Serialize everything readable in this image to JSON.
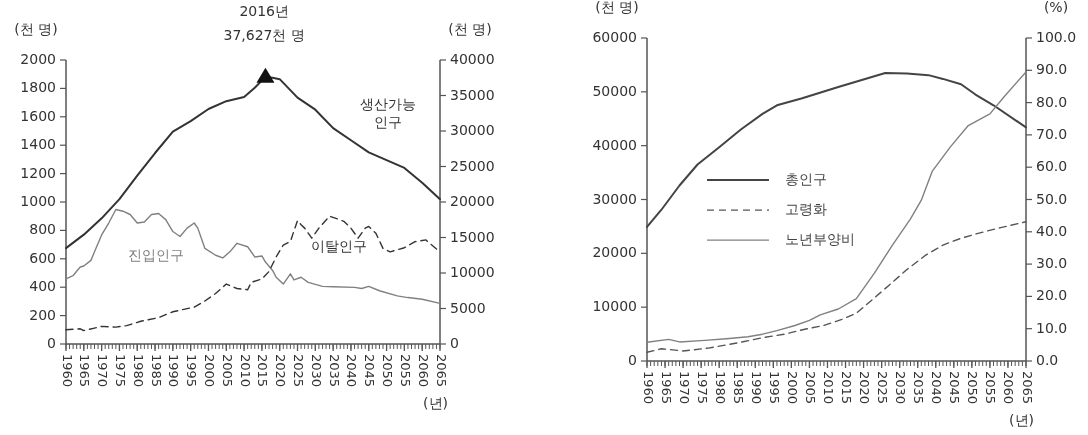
{
  "chart_data": [
    {
      "type": "line",
      "xlabel": "(년)",
      "ylabel": "(천 명)",
      "y2label": "(천 명)",
      "xlim": [
        1960,
        2065
      ],
      "xticks": [
        1960,
        1965,
        1970,
        1975,
        1980,
        1985,
        1990,
        1995,
        2000,
        2005,
        2010,
        2015,
        2020,
        2025,
        2030,
        2035,
        2040,
        2045,
        2050,
        2055,
        2060,
        2065
      ],
      "ylim": [
        0,
        2000
      ],
      "yticks": [
        0,
        200,
        400,
        600,
        800,
        1000,
        1200,
        1400,
        1600,
        1800,
        2000
      ],
      "y2lim": [
        0,
        40000
      ],
      "y2ticks": [
        0,
        5000,
        10000,
        15000,
        20000,
        25000,
        30000,
        35000,
        40000
      ],
      "grid": false,
      "legend": false,
      "annotations": [
        "2016년\n37,627천 명"
      ],
      "series": [
        {
          "name": "생산가능\n인구",
          "color": "#333333",
          "axis": "y2",
          "line_style": "solid",
          "x": [
            1960,
            1965,
            1970,
            1975,
            1980,
            1985,
            1990,
            1995,
            2000,
            2005,
            2010,
            2013,
            2016,
            2018,
            2020,
            2025,
            2030,
            2035,
            2040,
            2045,
            2050,
            2055,
            2060,
            2065
          ],
          "values": [
            13500,
            15400,
            17700,
            20400,
            23700,
            26900,
            29900,
            31400,
            33100,
            34200,
            34800,
            36100,
            37627,
            37500,
            37300,
            34700,
            33000,
            30400,
            28700,
            27000,
            25900,
            24800,
            22700,
            20400
          ]
        },
        {
          "type": "scatter",
          "marker": "triangle",
          "color": "#111111",
          "axis": "y2",
          "x": [
            2016
          ],
          "values": [
            37627
          ]
        },
        {
          "name": "진입인구",
          "color": "#808080",
          "axis": "y",
          "line_style": "solid",
          "x": [
            1960,
            1962,
            1964,
            1965,
            1967,
            1968,
            1970,
            1972,
            1974,
            1976,
            1978,
            1980,
            1982,
            1984,
            1986,
            1988,
            1990,
            1992,
            1994,
            1996,
            1997,
            1999,
            2002,
            2004,
            2006,
            2008,
            2011,
            2013,
            2015,
            2016,
            2018,
            2019,
            2021,
            2023,
            2024,
            2026,
            2028,
            2032,
            2035,
            2041,
            2043,
            2045,
            2048,
            2053,
            2056,
            2060,
            2065
          ],
          "values": [
            458,
            482,
            542,
            549,
            589,
            649,
            768,
            852,
            947,
            935,
            912,
            852,
            859,
            912,
            919,
            876,
            792,
            757,
            816,
            852,
            816,
            673,
            625,
            606,
            649,
            709,
            685,
            613,
            620,
            577,
            518,
            470,
            422,
            494,
            451,
            470,
            434,
            406,
            403,
            399,
            391,
            406,
            375,
            339,
            327,
            315,
            286
          ]
        },
        {
          "name": "이탈인구",
          "color": "#333333",
          "axis": "y",
          "line_style": "dashed",
          "x": [
            1960,
            1964,
            1965,
            1968,
            1970,
            1974,
            1977,
            1981,
            1986,
            1990,
            1996,
            1999,
            2002,
            2005,
            2008,
            2011,
            2012,
            2015,
            2017,
            2019,
            2021,
            2023,
            2024,
            2025,
            2026,
            2027,
            2029,
            2031,
            2034,
            2036,
            2038,
            2040,
            2042,
            2044,
            2045,
            2047,
            2049,
            2051,
            2055,
            2058,
            2061,
            2065
          ],
          "values": [
            100,
            107,
            95,
            112,
            124,
            119,
            129,
            160,
            186,
            227,
            260,
            303,
            356,
            422,
            391,
            382,
            434,
            458,
            511,
            613,
            697,
            721,
            797,
            869,
            840,
            816,
            745,
            816,
            900,
            883,
            864,
            816,
            745,
            816,
            828,
            780,
            673,
            649,
            678,
            721,
            733,
            649
          ]
        }
      ]
    },
    {
      "type": "line",
      "xlabel": "(년)",
      "ylabel": "(천 명)",
      "y2label": "(%)",
      "xlim": [
        1960,
        2065
      ],
      "xticks": [
        1960,
        1965,
        1970,
        1975,
        1980,
        1985,
        1990,
        1995,
        2000,
        2005,
        2010,
        2015,
        2020,
        2025,
        2030,
        2035,
        2040,
        2045,
        2050,
        2055,
        2060,
        2065
      ],
      "ylim": [
        0,
        60000
      ],
      "yticks": [
        0,
        10000,
        20000,
        30000,
        40000,
        50000,
        60000
      ],
      "y2lim": [
        0,
        100
      ],
      "y2ticks": [
        {
          "value": 0,
          "label": "0.0"
        },
        {
          "value": 10,
          "label": "10.0"
        },
        {
          "value": 20,
          "label": "20.0"
        },
        {
          "value": 30,
          "label": "30.0"
        },
        {
          "value": 40,
          "label": "40.0"
        },
        {
          "value": 50,
          "label": "50.0"
        },
        {
          "value": 60,
          "label": "60.0"
        },
        {
          "value": 70,
          "label": "70.0"
        },
        {
          "value": 80,
          "label": "80.0"
        },
        {
          "value": 90,
          "label": "90.0"
        },
        {
          "value": 100,
          "label": "100.0"
        }
      ],
      "grid": false,
      "legend": "left",
      "series": [
        {
          "name": "총인구",
          "color": "#444444",
          "axis": "y",
          "line_style": "solid",
          "x": [
            1960,
            1964,
            1969,
            1974,
            1980,
            1986,
            1992,
            1996,
            2003,
            2013,
            2026,
            2032,
            2038,
            2042,
            2047,
            2051,
            2056,
            2065
          ],
          "values": [
            24900,
            28100,
            32600,
            36500,
            39700,
            43000,
            45900,
            47500,
            48800,
            50900,
            53500,
            53400,
            53100,
            52400,
            51400,
            49500,
            47500,
            43400
          ]
        },
        {
          "name": "고령화",
          "color": "#555555",
          "axis": "y2",
          "line_style": "dashed",
          "x": [
            1960,
            1964,
            1970,
            1977,
            1985,
            1992,
            1998,
            2004,
            2009,
            2014,
            2018,
            2022,
            2027,
            2032,
            2037,
            2042,
            2047,
            2052,
            2058,
            2065
          ],
          "values": [
            2.7,
            3.8,
            3.1,
            4.0,
            5.6,
            7.2,
            8.3,
            9.9,
            11.0,
            12.9,
            14.8,
            18.6,
            23.4,
            28.3,
            32.6,
            35.9,
            38.0,
            39.6,
            41.3,
            43.1
          ]
        },
        {
          "name": "노년부양비",
          "color": "#808080",
          "axis": "y2",
          "line_style": "solid",
          "x": [
            1960,
            1966,
            1969,
            1976,
            1982,
            1988,
            1992,
            1996,
            2001,
            2005,
            2008,
            2013,
            2018,
            2023,
            2028,
            2033,
            2036,
            2039,
            2044,
            2049,
            2055,
            2059,
            2065
          ],
          "values": [
            5.8,
            6.7,
            5.9,
            6.4,
            6.9,
            7.5,
            8.3,
            9.4,
            11.0,
            12.6,
            14.3,
            16.1,
            19.3,
            27.2,
            35.9,
            44.0,
            49.8,
            58.7,
            66.2,
            72.9,
            76.5,
            81.9,
            89.5
          ]
        }
      ]
    }
  ]
}
